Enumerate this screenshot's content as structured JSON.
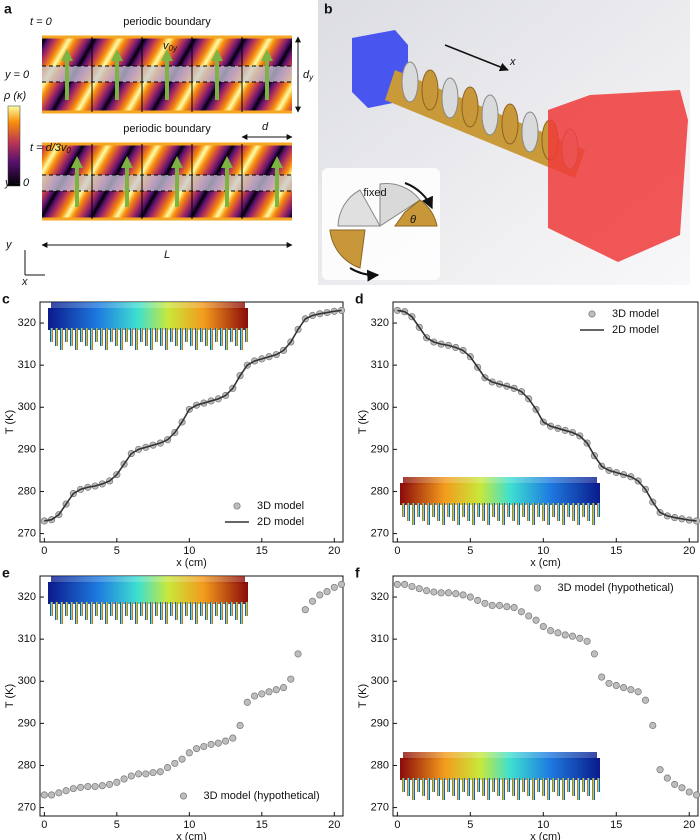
{
  "panel_a": {
    "label": "a",
    "time_1": "t = 0",
    "boundary_top": "periodic boundary",
    "velocity": [
      "v",
      "0y"
    ],
    "origin_1": "y = 0",
    "height": [
      "d",
      "y"
    ],
    "colorbar": "ρ (κ)",
    "boundary_bottom": "periodic boundary",
    "time_2": [
      "t = d/3v",
      "0"
    ],
    "period": "d",
    "origin_2": "y = 0",
    "length": "L",
    "axis_y": "y",
    "axis_x": "x"
  },
  "panel_b": {
    "label": "b",
    "direction": "x",
    "fixed": "fixed",
    "angle": "θ"
  },
  "chart_data": [
    {
      "type": "line",
      "label": "c",
      "xlabel": "x (cm)",
      "ylabel": "T (K)",
      "xlim": [
        -0.3,
        20.6
      ],
      "ylim": [
        268,
        325
      ],
      "xticks": [
        0,
        5,
        10,
        15,
        20
      ],
      "yticks": [
        270,
        280,
        290,
        300,
        310,
        320
      ],
      "legend": "lower right",
      "x": [
        0,
        0.5,
        1,
        1.5,
        2,
        2.5,
        3,
        3.5,
        4,
        4.5,
        5,
        5.5,
        6,
        6.5,
        7,
        7.5,
        8,
        8.5,
        9,
        9.5,
        10,
        10.5,
        11,
        11.5,
        12,
        12.5,
        13,
        13.5,
        14,
        14.5,
        15,
        15.5,
        16,
        16.5,
        17,
        17.5,
        18,
        18.5,
        19,
        19.5,
        20,
        20.5
      ],
      "series": [
        {
          "name": "3D model",
          "style": "markers",
          "color": "#bdbdbd",
          "values": [
            273,
            273.3,
            274.5,
            277,
            279.5,
            280.5,
            281,
            281.3,
            281.8,
            282.5,
            284,
            286.5,
            289,
            290,
            290.5,
            291,
            291.5,
            292.3,
            294,
            296.5,
            299.5,
            300.5,
            301,
            301.5,
            302,
            302.8,
            304.5,
            307.5,
            310,
            311,
            311.5,
            312,
            312.5,
            313.5,
            315.5,
            318.5,
            321,
            321.8,
            322.2,
            322.5,
            322.8,
            323
          ]
        },
        {
          "name": "2D model",
          "style": "line",
          "color": "#333333",
          "values": [
            273,
            273.3,
            274.5,
            277,
            279.5,
            280.5,
            281,
            281.3,
            281.8,
            282.5,
            284,
            286.5,
            289,
            290,
            290.5,
            291,
            291.5,
            292.3,
            294,
            296.5,
            299.5,
            300.5,
            301,
            301.5,
            302,
            302.8,
            304.5,
            307.5,
            310,
            311,
            311.5,
            312,
            312.5,
            313.5,
            315.5,
            318.5,
            321,
            321.8,
            322.2,
            322.5,
            322.8,
            323
          ]
        }
      ]
    },
    {
      "type": "line",
      "label": "d",
      "xlabel": "x (cm)",
      "ylabel": "T (K)",
      "xlim": [
        -0.3,
        20.6
      ],
      "ylim": [
        268,
        325
      ],
      "xticks": [
        0,
        5,
        10,
        15,
        20
      ],
      "yticks": [
        270,
        280,
        290,
        300,
        310,
        320
      ],
      "legend": "upper right",
      "x": [
        0,
        0.5,
        1,
        1.5,
        2,
        2.5,
        3,
        3.5,
        4,
        4.5,
        5,
        5.5,
        6,
        6.5,
        7,
        7.5,
        8,
        8.5,
        9,
        9.5,
        10,
        10.5,
        11,
        11.5,
        12,
        12.5,
        13,
        13.5,
        14,
        14.5,
        15,
        15.5,
        16,
        16.5,
        17,
        17.5,
        18,
        18.5,
        19,
        19.5,
        20,
        20.5
      ],
      "series": [
        {
          "name": "3D model",
          "style": "markers",
          "color": "#bdbdbd",
          "values": [
            323,
            322.7,
            321.5,
            319,
            316.5,
            315.5,
            315,
            314.7,
            314.2,
            313.5,
            312,
            309.5,
            307,
            306,
            305.5,
            305,
            304.5,
            303.7,
            302,
            299.5,
            296.5,
            295.5,
            295,
            294.5,
            294,
            293.2,
            291.5,
            288.5,
            286,
            285,
            284.5,
            284,
            283.5,
            282.5,
            280.5,
            277.5,
            275,
            274.2,
            273.8,
            273.5,
            273.2,
            273
          ]
        },
        {
          "name": "2D model",
          "style": "line",
          "color": "#333333",
          "values": [
            323,
            322.7,
            321.5,
            319,
            316.5,
            315.5,
            315,
            314.7,
            314.2,
            313.5,
            312,
            309.5,
            307,
            306,
            305.5,
            305,
            304.5,
            303.7,
            302,
            299.5,
            296.5,
            295.5,
            295,
            294.5,
            294,
            293.2,
            291.5,
            288.5,
            286,
            285,
            284.5,
            284,
            283.5,
            282.5,
            280.5,
            277.5,
            275,
            274.2,
            273.8,
            273.5,
            273.2,
            273
          ]
        }
      ]
    },
    {
      "type": "scatter",
      "label": "e",
      "xlabel": "x (cm)",
      "ylabel": "T (K)",
      "xlim": [
        -0.3,
        20.6
      ],
      "ylim": [
        268,
        325
      ],
      "xticks": [
        0,
        5,
        10,
        15,
        20
      ],
      "yticks": [
        270,
        280,
        290,
        300,
        310,
        320
      ],
      "legend": "lower center",
      "x": [
        0,
        0.5,
        1,
        1.5,
        2,
        2.5,
        3,
        3.5,
        4,
        4.5,
        5,
        5.5,
        6,
        6.5,
        7,
        7.5,
        8,
        8.5,
        9,
        9.5,
        10,
        10.5,
        11,
        11.5,
        12,
        12.5,
        13,
        13.5,
        14,
        14.5,
        15,
        15.5,
        16,
        16.5,
        17,
        17.5,
        18,
        18.5,
        19,
        19.5,
        20,
        20.5
      ],
      "series": [
        {
          "name": "3D model (hypothetical)",
          "style": "markers",
          "color": "#bdbdbd",
          "values": [
            273,
            273,
            273.5,
            274,
            274.5,
            274.8,
            275,
            275,
            275.2,
            275.5,
            276,
            276.8,
            277.5,
            278,
            278,
            278.3,
            278.5,
            279.5,
            280.5,
            281.5,
            283,
            284,
            284.5,
            285,
            285.3,
            285.8,
            286.5,
            289.5,
            295,
            296.5,
            297,
            297.5,
            298,
            298.5,
            300.5,
            306.5,
            317,
            319,
            320.5,
            321.3,
            322.3,
            323
          ]
        }
      ]
    },
    {
      "type": "scatter",
      "label": "f",
      "xlabel": "x (cm)",
      "ylabel": "T (K)",
      "xlim": [
        -0.3,
        20.6
      ],
      "ylim": [
        268,
        325
      ],
      "xticks": [
        0,
        5,
        10,
        15,
        20
      ],
      "yticks": [
        270,
        280,
        290,
        300,
        310,
        320
      ],
      "legend": "upper center",
      "x": [
        0,
        0.5,
        1,
        1.5,
        2,
        2.5,
        3,
        3.5,
        4,
        4.5,
        5,
        5.5,
        6,
        6.5,
        7,
        7.5,
        8,
        8.5,
        9,
        9.5,
        10,
        10.5,
        11,
        11.5,
        12,
        12.5,
        13,
        13.5,
        14,
        14.5,
        15,
        15.5,
        16,
        16.5,
        17,
        17.5,
        18,
        18.5,
        19,
        19.5,
        20,
        20.5
      ],
      "series": [
        {
          "name": "3D model (hypothetical)",
          "style": "markers",
          "color": "#bdbdbd",
          "values": [
            323,
            323,
            322.5,
            322,
            321.5,
            321.2,
            321,
            321,
            320.8,
            320.5,
            320,
            319.2,
            318.5,
            318,
            318,
            317.7,
            317.5,
            316.5,
            315.5,
            314.5,
            313,
            312,
            311.5,
            311,
            310.7,
            310.2,
            309.5,
            306.5,
            301,
            299.5,
            299,
            298.5,
            298,
            297.5,
            295.5,
            289.5,
            279,
            277,
            275.5,
            274.7,
            273.7,
            273
          ]
        }
      ]
    }
  ]
}
